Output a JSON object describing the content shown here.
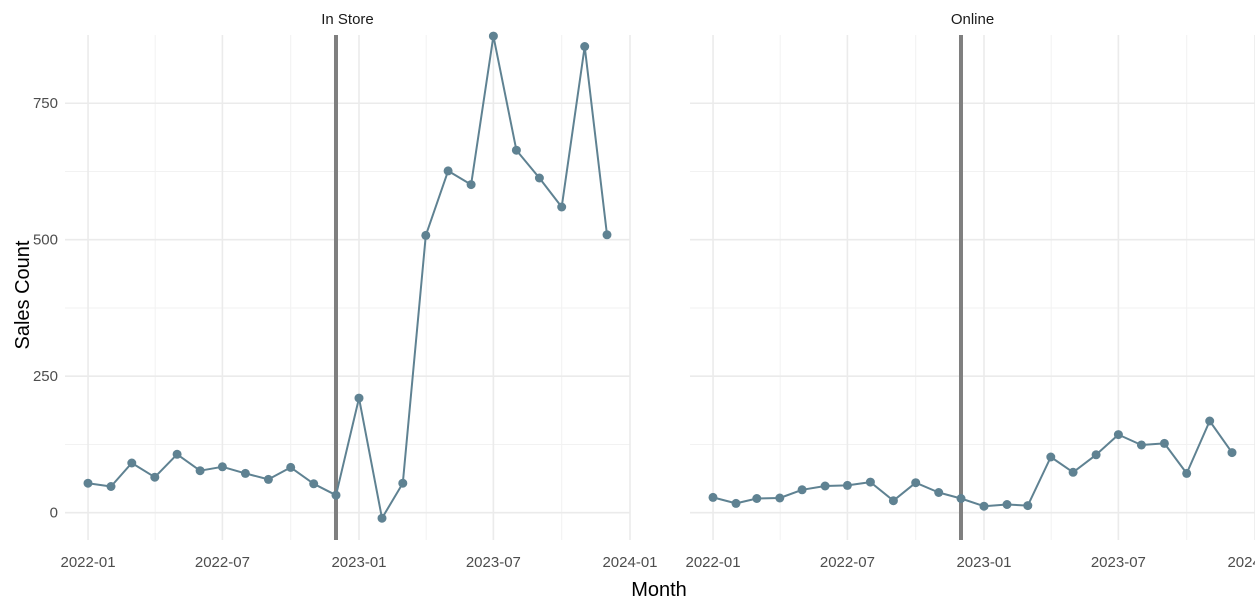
{
  "chart_data": {
    "type": "line",
    "xlabel": "Month",
    "ylabel": "Sales Count",
    "y_ticks": [
      0,
      250,
      500,
      750
    ],
    "x_tick_labels": [
      "2022-01",
      "2022-07",
      "2023-01",
      "2023-07",
      "2024-01"
    ],
    "x_tick_dates": [
      "2022-01-01",
      "2022-07-01",
      "2023-01-01",
      "2023-07-01",
      "2024-01-01"
    ],
    "x_range": [
      "2021-12-01",
      "2024-01-01"
    ],
    "ylim": [
      -50,
      875
    ],
    "grid": true,
    "reference_line": {
      "x": "2022-12-01",
      "color": "#7f7f7f"
    },
    "series_color": "#5f8292",
    "months": [
      "2022-01",
      "2022-02",
      "2022-03",
      "2022-04",
      "2022-05",
      "2022-06",
      "2022-07",
      "2022-08",
      "2022-09",
      "2022-10",
      "2022-11",
      "2022-12",
      "2023-01",
      "2023-02",
      "2023-03",
      "2023-04",
      "2023-05",
      "2023-06",
      "2023-07",
      "2023-08",
      "2023-09",
      "2023-10",
      "2023-11",
      "2023-12"
    ],
    "panels": [
      {
        "strip": "In Store",
        "values": [
          54,
          48,
          91,
          65,
          107,
          77,
          84,
          72,
          61,
          83,
          53,
          32,
          210,
          -10,
          54,
          508,
          626,
          601,
          873,
          664,
          613,
          560,
          854,
          509
        ]
      },
      {
        "strip": "Online",
        "values": [
          28,
          17,
          26,
          27,
          42,
          49,
          50,
          56,
          22,
          55,
          37,
          26,
          12,
          15,
          13,
          102,
          74,
          106,
          143,
          124,
          127,
          72,
          168,
          110
        ]
      }
    ]
  }
}
